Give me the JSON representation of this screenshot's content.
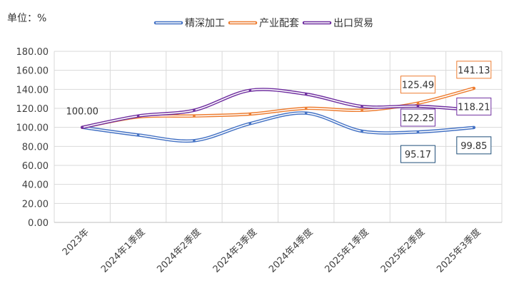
{
  "chart_data": {
    "type": "line",
    "unit_label": "单位：%",
    "categories": [
      "2023年",
      "2024年1季度",
      "2024年2季度",
      "2024年3季度",
      "2024年4季度",
      "2025年1季度",
      "2025年2季度",
      "2025年3季度"
    ],
    "ylim": [
      0,
      180
    ],
    "yticks": [
      "0.00",
      "20.00",
      "40.00",
      "60.00",
      "80.00",
      "100.00",
      "120.00",
      "140.00",
      "160.00",
      "180.00"
    ],
    "grid": true,
    "legend_position": "top-center",
    "smooth": true,
    "series": [
      {
        "name": "精深加工",
        "color": "#4472C4",
        "values": [
          100.0,
          92.0,
          86.0,
          104.0,
          115.0,
          96.0,
          95.17,
          99.85
        ]
      },
      {
        "name": "产业配套",
        "color": "#ED7D31",
        "values": [
          100.0,
          111.0,
          112.0,
          114.0,
          120.0,
          118.0,
          125.49,
          141.13
        ]
      },
      {
        "name": "出口贸易",
        "color": "#7030A0",
        "values": [
          100.0,
          112.0,
          118.0,
          139.0,
          135.0,
          122.0,
          122.25,
          118.21
        ]
      }
    ],
    "annotations": [
      {
        "text": "100.00",
        "series": null,
        "index": 0,
        "boxed": false
      },
      {
        "text": "125.49",
        "series": 1,
        "index": 6,
        "boxed": true,
        "color": "#ED7D31"
      },
      {
        "text": "141.13",
        "series": 1,
        "index": 7,
        "boxed": true,
        "color": "#ED7D31"
      },
      {
        "text": "122.25",
        "series": 2,
        "index": 6,
        "boxed": true,
        "color": "#7030A0"
      },
      {
        "text": "118.21",
        "series": 2,
        "index": 7,
        "boxed": true,
        "color": "#7030A0"
      },
      {
        "text": "95.17",
        "series": 0,
        "index": 6,
        "boxed": true,
        "color": "#1F4E79"
      },
      {
        "text": "99.85",
        "series": 0,
        "index": 7,
        "boxed": true,
        "color": "#1F4E79"
      }
    ]
  }
}
